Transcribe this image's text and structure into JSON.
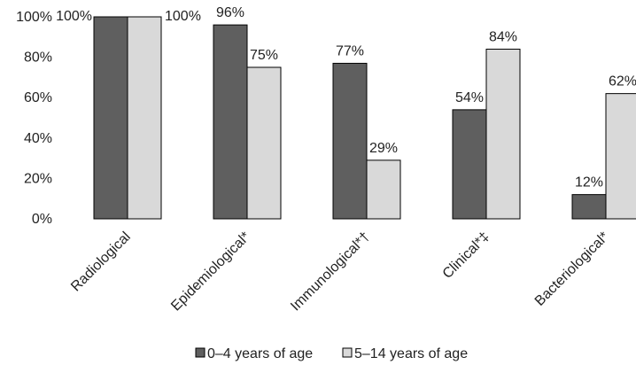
{
  "chart_data": {
    "type": "bar",
    "categories": [
      "Radiological",
      "Epidemiological*",
      "Immunological*†",
      "Clinical*‡",
      "Bacteriological*"
    ],
    "series": [
      {
        "name": "0–4 years of age",
        "values": [
          100,
          96,
          77,
          54,
          12
        ],
        "color": "#5f5f5f"
      },
      {
        "name": "5–14 years of age",
        "values": [
          100,
          75,
          29,
          84,
          62
        ],
        "color": "#d9d9d9"
      }
    ],
    "value_labels": [
      [
        "100%",
        "96%",
        "77%",
        "54%",
        "12%"
      ],
      [
        "100%",
        "75%",
        "29%",
        "84%",
        "62%"
      ]
    ],
    "y_ticks": [
      "0%",
      "20%",
      "40%",
      "60%",
      "80%",
      "100%"
    ],
    "ylim": [
      0,
      100
    ],
    "title": "",
    "xlabel": "",
    "ylabel": "",
    "grid": false,
    "legend_position": "bottom-center",
    "bar_outline_color": "#000000"
  }
}
